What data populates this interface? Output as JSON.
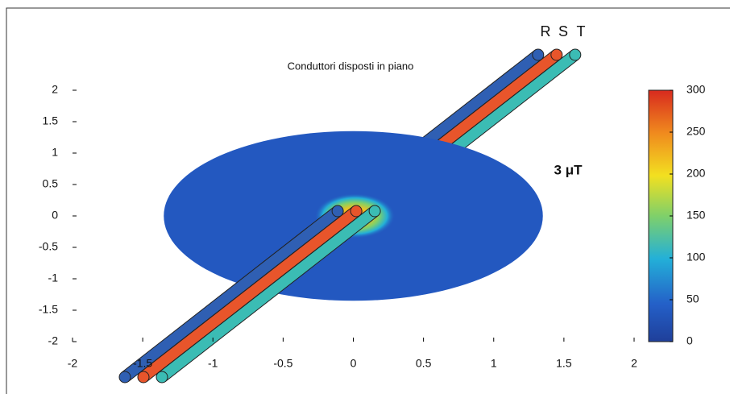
{
  "chart_data": {
    "type": "field-map",
    "title": "Conduttori disposti in piano",
    "annotation": "3 μT",
    "contour_radius": 1.35,
    "series": [
      {
        "name": "R",
        "color": "#2f5fb3"
      },
      {
        "name": "S",
        "color": "#e8552b"
      },
      {
        "name": "T",
        "color": "#3bbcb4"
      }
    ],
    "xlim": [
      -2,
      2
    ],
    "xticks": [
      -2,
      -1.5,
      -1,
      -0.5,
      0,
      0.5,
      1,
      1.5,
      2
    ],
    "ylim": [
      -2,
      2
    ],
    "yticks": [
      -2,
      -1.5,
      -1,
      -0.5,
      0,
      0.5,
      1,
      1.5,
      2
    ],
    "clim": [
      0,
      300
    ],
    "cticks": [
      0,
      50,
      100,
      150,
      200,
      250,
      300
    ]
  }
}
